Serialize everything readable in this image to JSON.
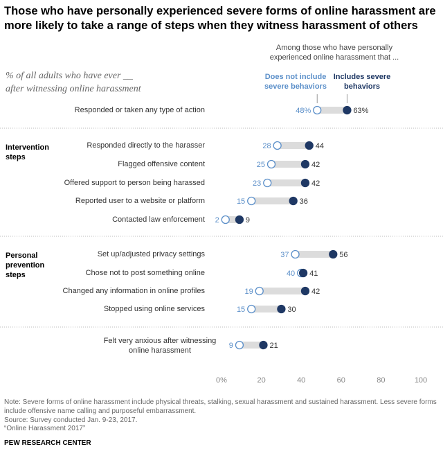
{
  "title": "Those who have personally experienced severe forms of online harassment are more likely to take a range of steps when they witness harassment of others",
  "subtitle": "% of all adults who have ever __ after witnessing online harassment",
  "chart_data": {
    "type": "dot",
    "header": "Among those who have personally experienced online harassment that ...",
    "groups": [
      "Intervention steps",
      "Personal prevention steps"
    ],
    "categories": [
      "Responded or taken any type of action",
      "Responded directly to the harasser",
      "Flagged offensive content",
      "Offered support to person being harassed",
      "Reported user to a website or platform",
      "Contacted law enforcement",
      "Set up/adjusted privacy settings",
      "Chose not to post something online",
      "Changed any information in online profiles",
      "Stopped using online services",
      "Felt very anxious after witnessing online harassment"
    ],
    "series": [
      {
        "name": "Does not include severe behaviors",
        "color": "#5b8fc9",
        "values": [
          48,
          28,
          25,
          23,
          15,
          2,
          37,
          40,
          19,
          15,
          9
        ],
        "value_labels": [
          "48%",
          "28",
          "25",
          "23",
          "15",
          "2",
          "37",
          "40",
          "19",
          "15",
          "9"
        ]
      },
      {
        "name": "Includes severe behaviors",
        "color": "#1f3864",
        "values": [
          63,
          44,
          42,
          42,
          36,
          9,
          56,
          41,
          42,
          30,
          21
        ],
        "value_labels": [
          "63%",
          "44",
          "42",
          "42",
          "36",
          "9",
          "56",
          "41",
          "42",
          "30",
          "21"
        ]
      }
    ],
    "xlim": [
      0,
      100
    ],
    "xticks": [
      {
        "value": 0,
        "label": "0%"
      },
      20,
      40,
      60,
      80,
      100
    ]
  },
  "note": "Note: Severe forms of online harassment include physical threats, stalking, sexual harassment and sustained harassment. Less severe forms include offensive name calling and purposeful embarrassment.",
  "source": "Source: Survey conducted Jan. 9-23, 2017.",
  "report": "“Online Harassment 2017”",
  "footer": "PEW RESEARCH CENTER"
}
